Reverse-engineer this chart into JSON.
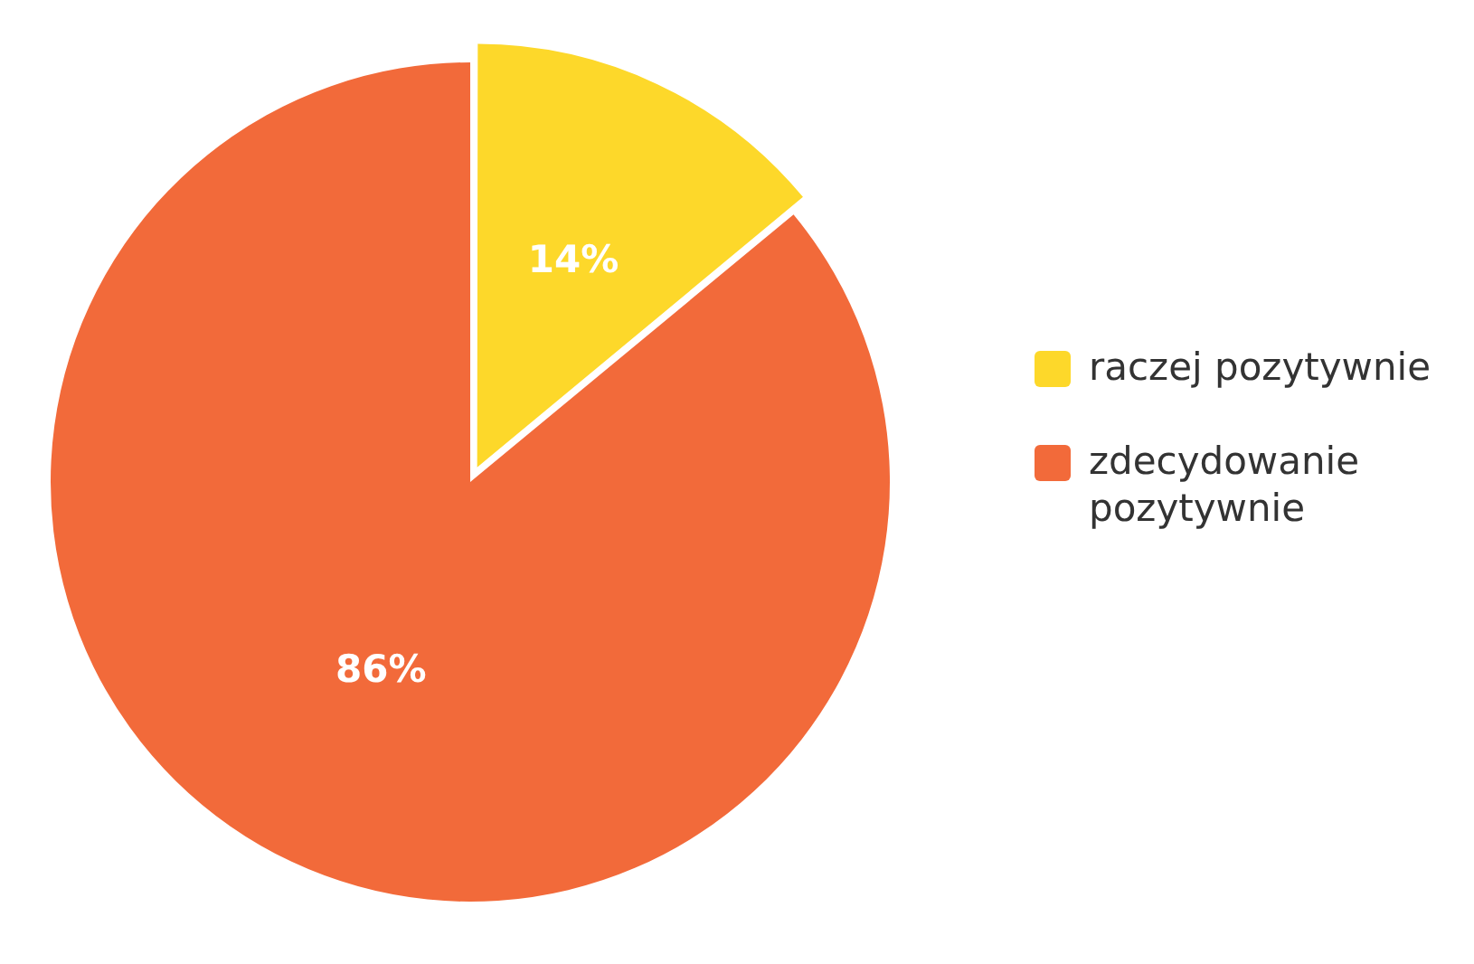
{
  "chart_data": {
    "type": "pie",
    "categories": [
      "raczej pozytywnie",
      "zdecydowanie pozytywnie"
    ],
    "values": [
      14,
      86
    ],
    "value_labels": [
      "14%",
      "86%"
    ],
    "colors": [
      "#fdd82a",
      "#f26a3a"
    ],
    "legend": "right"
  }
}
